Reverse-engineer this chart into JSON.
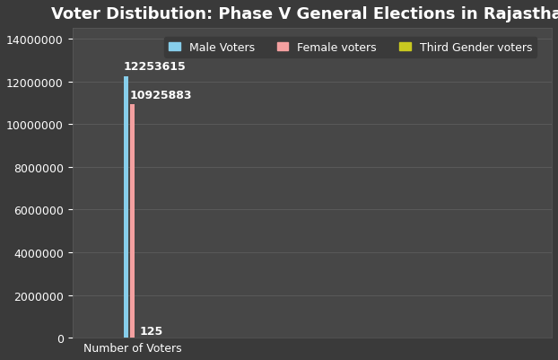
{
  "title": "Voter Distibution: Phase V General Elections in Rajasthan",
  "title_fontsize": 13,
  "title_color": "white",
  "title_fontweight": "bold",
  "background_color": "#3a3a3a",
  "axes_bg_color": "#474747",
  "grid_color": "#5a5a5a",
  "xlabel": "Number of Voters",
  "xlabel_color": "white",
  "ylabel": "",
  "categories": [
    "Number of Voters"
  ],
  "series": [
    {
      "label": "Male Voters",
      "value": 12253615,
      "color": "#87CEEB"
    },
    {
      "label": "Female voters",
      "value": 10925883,
      "color": "#F4A0A0"
    },
    {
      "label": "Third Gender voters",
      "value": 125,
      "color": "#c8c820"
    }
  ],
  "bar_width": 0.04,
  "bar_positions": [
    -0.05,
    0.0,
    0.05
  ],
  "ylim": [
    0,
    14500000
  ],
  "yticks": [
    0,
    2000000,
    4000000,
    6000000,
    8000000,
    10000000,
    12000000,
    14000000
  ],
  "annotation_color": "white",
  "annotation_fontsize": 9,
  "legend_facecolor": "#3a3a3a",
  "legend_edgecolor": "#3a3a3a",
  "legend_text_color": "white",
  "legend_fontsize": 9,
  "tick_color": "white",
  "tick_fontsize": 9,
  "spine_color": "#5a5a5a",
  "xlim": [
    -0.5,
    3.5
  ]
}
